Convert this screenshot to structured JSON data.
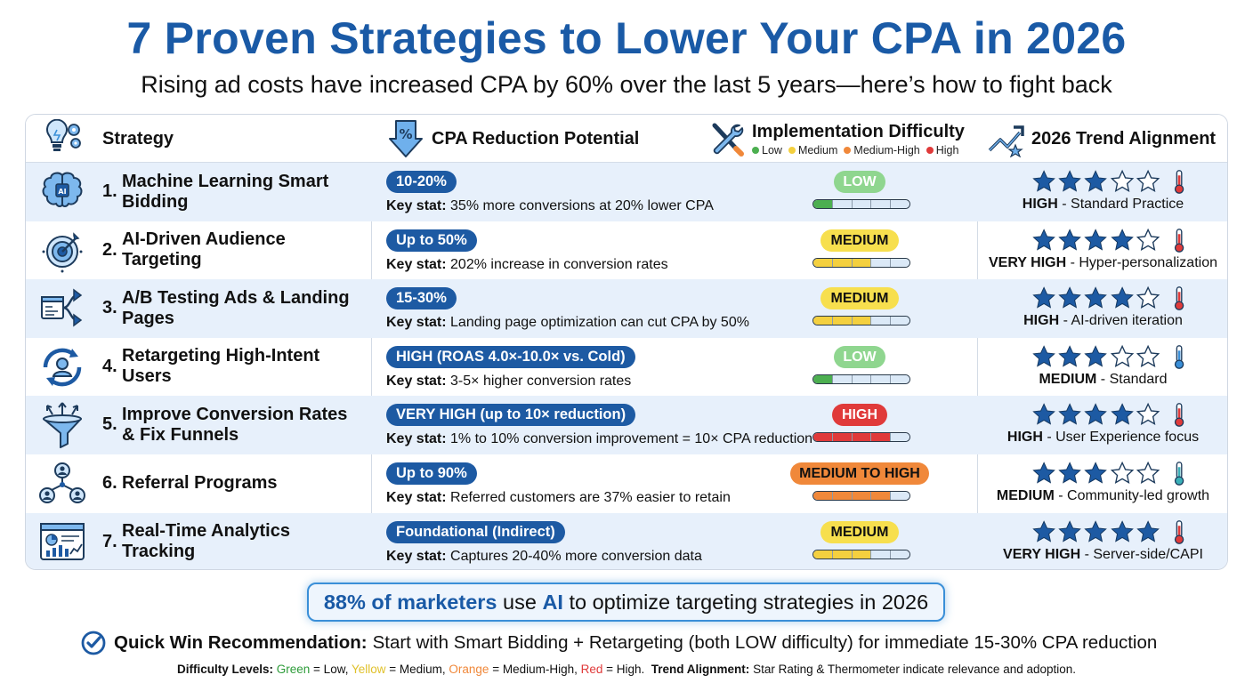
{
  "title": "7 Proven Strategies to Lower Your CPA in 2026",
  "subtitle": "Rising ad costs have increased CPA by 60% over the last 5 years—here’s how to fight back",
  "headers": {
    "strategy": "Strategy",
    "cpa": "CPA Reduction Potential",
    "difficulty": "Implementation Difficulty",
    "trend": "2026 Trend Alignment",
    "legend": {
      "low": "Low",
      "medium": "Medium",
      "medium_high": "Medium-High",
      "high": "High"
    }
  },
  "colors": {
    "brand_blue": "#1a5aa6",
    "low": "#4caf50",
    "medium": "#f4d03f",
    "medium_high": "#f0883a",
    "high": "#e03a3a",
    "star": "#1d5aa3"
  },
  "key_stat_label": "Key stat:",
  "rows": [
    {
      "num": "1.",
      "name": "Machine Learning Smart Bidding",
      "icon": "brain-chip-icon",
      "cpa": "10-20%",
      "key_stat": "35% more conversions at 20% lower CPA",
      "difficulty": "LOW",
      "level": "low",
      "fill_fraction": 0.2,
      "stars": 3,
      "therm": "red",
      "trend_level": "HIGH",
      "trend_text": "Standard Practice"
    },
    {
      "num": "2.",
      "name": "AI-Driven Audience Targeting",
      "icon": "target-icon",
      "cpa": "Up to 50%",
      "key_stat": "202% increase in conversion rates",
      "difficulty": "MEDIUM",
      "level": "medium",
      "fill_fraction": 0.6,
      "stars": 4,
      "therm": "red",
      "trend_level": "VERY HIGH",
      "trend_text": "Hyper-personalization"
    },
    {
      "num": "3.",
      "name": "A/B Testing Ads & Landing Pages",
      "icon": "ab-test-icon",
      "cpa": "15-30%",
      "key_stat": "Landing page optimization can cut CPA by 50%",
      "difficulty": "MEDIUM",
      "level": "medium",
      "fill_fraction": 0.6,
      "stars": 4,
      "therm": "red",
      "trend_level": "HIGH",
      "trend_text": "AI-driven iteration"
    },
    {
      "num": "4.",
      "name": "Retargeting High-Intent Users",
      "icon": "retarget-user-icon",
      "cpa": "HIGH (ROAS 4.0×-10.0× vs. Cold)",
      "key_stat": "3-5× higher conversion rates",
      "difficulty": "LOW",
      "level": "low",
      "fill_fraction": 0.2,
      "stars": 3,
      "therm": "blue",
      "trend_level": "MEDIUM",
      "trend_text": "Standard"
    },
    {
      "num": "5.",
      "name": "Improve Conversion Rates & Fix Funnels",
      "icon": "funnel-icon",
      "cpa": "VERY HIGH (up to 10× reduction)",
      "key_stat": "1% to 10% conversion improvement = 10× CPA reduction",
      "difficulty": "HIGH",
      "level": "high",
      "fill_fraction": 0.8,
      "stars": 4,
      "therm": "red",
      "trend_level": "HIGH",
      "trend_text": "User Experience focus"
    },
    {
      "num": "6.",
      "name": "Referral Programs",
      "icon": "referral-network-icon",
      "cpa": "Up to 90%",
      "key_stat": "Referred customers are 37% easier to retain",
      "difficulty": "MEDIUM TO HIGH",
      "level": "medium_high",
      "fill_fraction": 0.8,
      "stars": 3,
      "therm": "teal",
      "trend_level": "MEDIUM",
      "trend_text": "Community-led growth"
    },
    {
      "num": "7.",
      "name": "Real-Time Analytics Tracking",
      "icon": "analytics-dashboard-icon",
      "cpa": "Foundational (Indirect)",
      "key_stat": "Captures 20-40% more conversion data",
      "difficulty": "MEDIUM",
      "level": "medium",
      "fill_fraction": 0.6,
      "stars": 5,
      "therm": "red",
      "trend_level": "VERY HIGH",
      "trend_text": "Server-side/CAPI"
    }
  ],
  "callout": {
    "highlight": "88% of marketers",
    "mid": "use",
    "ai": "AI",
    "rest": "to optimize targeting strategies in 2026"
  },
  "quick_win": {
    "label": "Quick Win Recommendation:",
    "text": "Start with Smart Bidding + Retargeting (both LOW difficulty) for immediate 15-30% CPA reduction"
  },
  "footer": {
    "label": "Difficulty Levels:",
    "green": "Green",
    "eq_low": " = Low, ",
    "yellow": "Yellow",
    "eq_medium": " = Medium, ",
    "orange": "Orange",
    "eq_mh": " = Medium-High, ",
    "red": "Red",
    "eq_high": " = High.",
    "trend_label": "Trend Alignment:",
    "trend_text": "Star Rating & Thermometer indicate relevance and adoption."
  }
}
